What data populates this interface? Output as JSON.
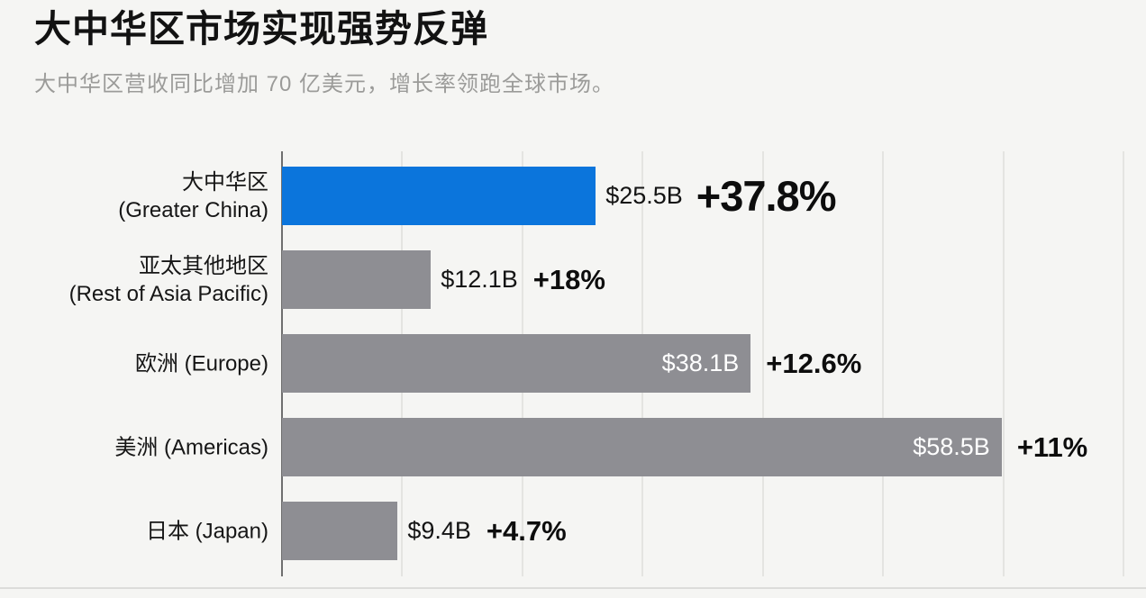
{
  "header": {
    "title": "大中华区市场实现强势反弹",
    "subtitle": "大中华区营收同比增加 70 亿美元，增长率领跑全球市场。"
  },
  "chart_data": {
    "type": "bar",
    "orientation": "horizontal",
    "title": "大中华区市场实现强势反弹",
    "subtitle": "大中华区营收同比增加 70 亿美元，增长率领跑全球市场。",
    "value_unit": "USD billions",
    "xlim": [
      0,
      68.4
    ],
    "grid": {
      "visible": true,
      "vertical_line_count": 7
    },
    "legend": "none",
    "categories": [
      "大中华区 (Greater China)",
      "亚太其他地区 (Rest of Asia Pacific)",
      "欧洲 (Europe)",
      "美洲 (Americas)",
      "日本 (Japan)"
    ],
    "series": [
      {
        "name": "营收",
        "values": [
          25.5,
          12.1,
          38.1,
          58.5,
          9.4
        ]
      }
    ],
    "growth_rates": [
      "+37.8%",
      "+18%",
      "+12.6%",
      "+11%",
      "+4.7%"
    ],
    "rows": [
      {
        "label_line1": "大中华区",
        "label_line2": "(Greater China)",
        "value": 25.5,
        "value_label": "$25.5B",
        "growth_label": "+37.8%",
        "bar_color": "#0b75dc",
        "value_inside": false,
        "highlight": true
      },
      {
        "label_line1": "亚太其他地区",
        "label_line2": "(Rest of Asia Pacific)",
        "value": 12.1,
        "value_label": "$12.1B",
        "growth_label": "+18%",
        "bar_color": "#8e8e93",
        "value_inside": false,
        "highlight": false
      },
      {
        "label_line1": "欧洲 (Europe)",
        "label_line2": "",
        "value": 38.1,
        "value_label": "$38.1B",
        "growth_label": "+12.6%",
        "bar_color": "#8e8e93",
        "value_inside": true,
        "highlight": false
      },
      {
        "label_line1": "美洲 (Americas)",
        "label_line2": "",
        "value": 58.5,
        "value_label": "$58.5B",
        "growth_label": "+11%",
        "bar_color": "#8e8e93",
        "value_inside": true,
        "highlight": false
      },
      {
        "label_line1": "日本 (Japan)",
        "label_line2": "",
        "value": 9.4,
        "value_label": "$9.4B",
        "growth_label": "+4.7%",
        "bar_color": "#8e8e93",
        "value_inside": false,
        "highlight": false
      }
    ],
    "colors": {
      "highlight_bar": "#0b75dc",
      "default_bar": "#8e8e93",
      "background": "#f5f5f3",
      "gridline": "#e4e4e1",
      "axis_line": "#6f6f6f",
      "inside_value_text": "#ffffff",
      "outside_value_text": "#141414"
    }
  }
}
